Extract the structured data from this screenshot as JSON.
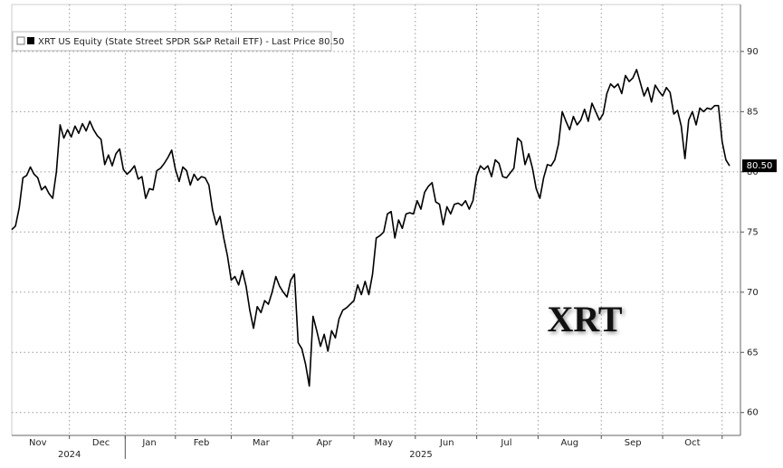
{
  "chart_data": {
    "type": "line",
    "series": [
      {
        "name": "XRT US Equity (State Street SPDR S&P Retail ETF) - Last Price 80.50",
        "color": "#000000",
        "values": [
          75.2,
          75.5,
          77,
          79.5,
          79.7,
          80.4,
          79.8,
          79.5,
          78.5,
          78.8,
          78.2,
          77.8,
          80,
          83.9,
          82.8,
          83.5,
          82.9,
          83.8,
          83.2,
          84,
          83.4,
          84.2,
          83.5,
          83,
          82.7,
          80.6,
          81.4,
          80.5,
          81.5,
          81.9,
          80.2,
          79.8,
          80.1,
          80.5,
          79.4,
          79.6,
          77.8,
          78.6,
          78.5,
          80.1,
          80.3,
          80.7,
          81.2,
          81.8,
          80.2,
          79.2,
          80.4,
          80.1,
          78.9,
          79.8,
          79.3,
          79.6,
          79.5,
          78.9,
          76.8,
          75.6,
          76.3,
          74.5,
          73,
          71,
          71.3,
          70.6,
          71.8,
          70.5,
          68.5,
          67,
          68.8,
          68.3,
          69.3,
          69,
          70,
          71.3,
          70.5,
          70,
          69.6,
          71,
          71.5,
          65.8,
          65.3,
          64,
          62.2,
          68,
          66.8,
          65.5,
          66.5,
          65.1,
          66.8,
          66.2,
          67.8,
          68.5,
          68.7,
          69,
          69.3,
          70.6,
          69.8,
          70.9,
          69.8,
          71.5,
          74.5,
          74.7,
          75,
          76.5,
          76.7,
          74.5,
          76,
          75.3,
          76.5,
          76.6,
          76.5,
          77.6,
          76.9,
          78.3,
          78.8,
          79.1,
          77.5,
          77.3,
          75.6,
          77.1,
          76.5,
          77.3,
          77.4,
          77.2,
          77.6,
          76.9,
          77.6,
          79.7,
          80.5,
          80.2,
          80.5,
          79.6,
          81,
          80.7,
          79.6,
          79.5,
          79.9,
          80.3,
          82.8,
          82.5,
          80.6,
          81.5,
          80.3,
          78.6,
          77.8,
          79.5,
          80.6,
          80.5,
          81,
          82.3,
          85,
          84.2,
          83.5,
          84.6,
          83.9,
          84.3,
          85.2,
          84.2,
          85.7,
          85,
          84.3,
          84.8,
          86.5,
          87.3,
          87,
          87.3,
          86.5,
          88,
          87.5,
          87.8,
          88.5,
          87.4,
          86.3,
          87,
          85.8,
          87.2,
          86.7,
          86.3,
          87,
          86.6,
          84.8,
          85.1,
          83.8,
          81.1,
          84.3,
          85,
          83.9,
          85.3,
          85,
          85.3,
          85.2,
          85.5,
          85.5,
          82.5,
          81,
          80.5
        ]
      }
    ],
    "categories": [
      null,
      null,
      null,
      null,
      null,
      null,
      null,
      "Nov",
      null,
      null,
      null,
      null,
      null,
      null,
      null,
      null,
      null,
      null,
      null,
      null,
      null,
      null,
      null,
      null,
      "Dec",
      null,
      null,
      null,
      null,
      null,
      null,
      null,
      null,
      null,
      null,
      null,
      null,
      "Jan",
      null,
      null,
      null,
      null,
      null,
      null,
      null,
      null,
      null,
      null,
      null,
      null,
      null,
      "Feb",
      null,
      null,
      null,
      null,
      null,
      null,
      null,
      null,
      null,
      null,
      null,
      null,
      null,
      null,
      null,
      "Mar",
      null,
      null,
      null,
      null,
      null,
      null,
      null,
      null,
      null,
      null,
      null,
      null,
      null,
      null,
      null,
      null,
      "Apr",
      null,
      null,
      null,
      null,
      null,
      null,
      null,
      null,
      null,
      null,
      null,
      null,
      null,
      null,
      null,
      "May",
      null,
      null,
      null,
      null,
      null,
      null,
      null,
      null,
      null,
      null,
      null,
      null,
      null,
      null,
      null,
      null,
      "Jun",
      null,
      null,
      null,
      null,
      null,
      null,
      null,
      null,
      null,
      null,
      null,
      null,
      null,
      null,
      null,
      "Jul",
      null,
      null,
      null,
      null,
      null,
      null,
      null,
      null,
      null,
      null,
      null,
      null,
      null,
      null,
      null,
      null,
      "Aug",
      null,
      null,
      null,
      null,
      null,
      null,
      null,
      null,
      null,
      null,
      null,
      null,
      null,
      null,
      null,
      null,
      "Sep",
      null,
      null,
      null,
      null,
      null,
      null,
      null,
      null,
      null,
      null,
      null,
      null,
      null,
      null,
      null,
      "Oct",
      null,
      null,
      null,
      null,
      null,
      null,
      null,
      null,
      null,
      null
    ],
    "years": [
      {
        "label": "2024",
        "months": 2
      },
      {
        "label": "2025",
        "months": 10
      }
    ],
    "ylim": [
      58.1,
      93.9
    ],
    "yticks": [
      60,
      65,
      70,
      75,
      80,
      85,
      90
    ],
    "grid": true,
    "last_price": {
      "value": 80.5,
      "label": "80.50"
    },
    "annotation": "XRT"
  }
}
